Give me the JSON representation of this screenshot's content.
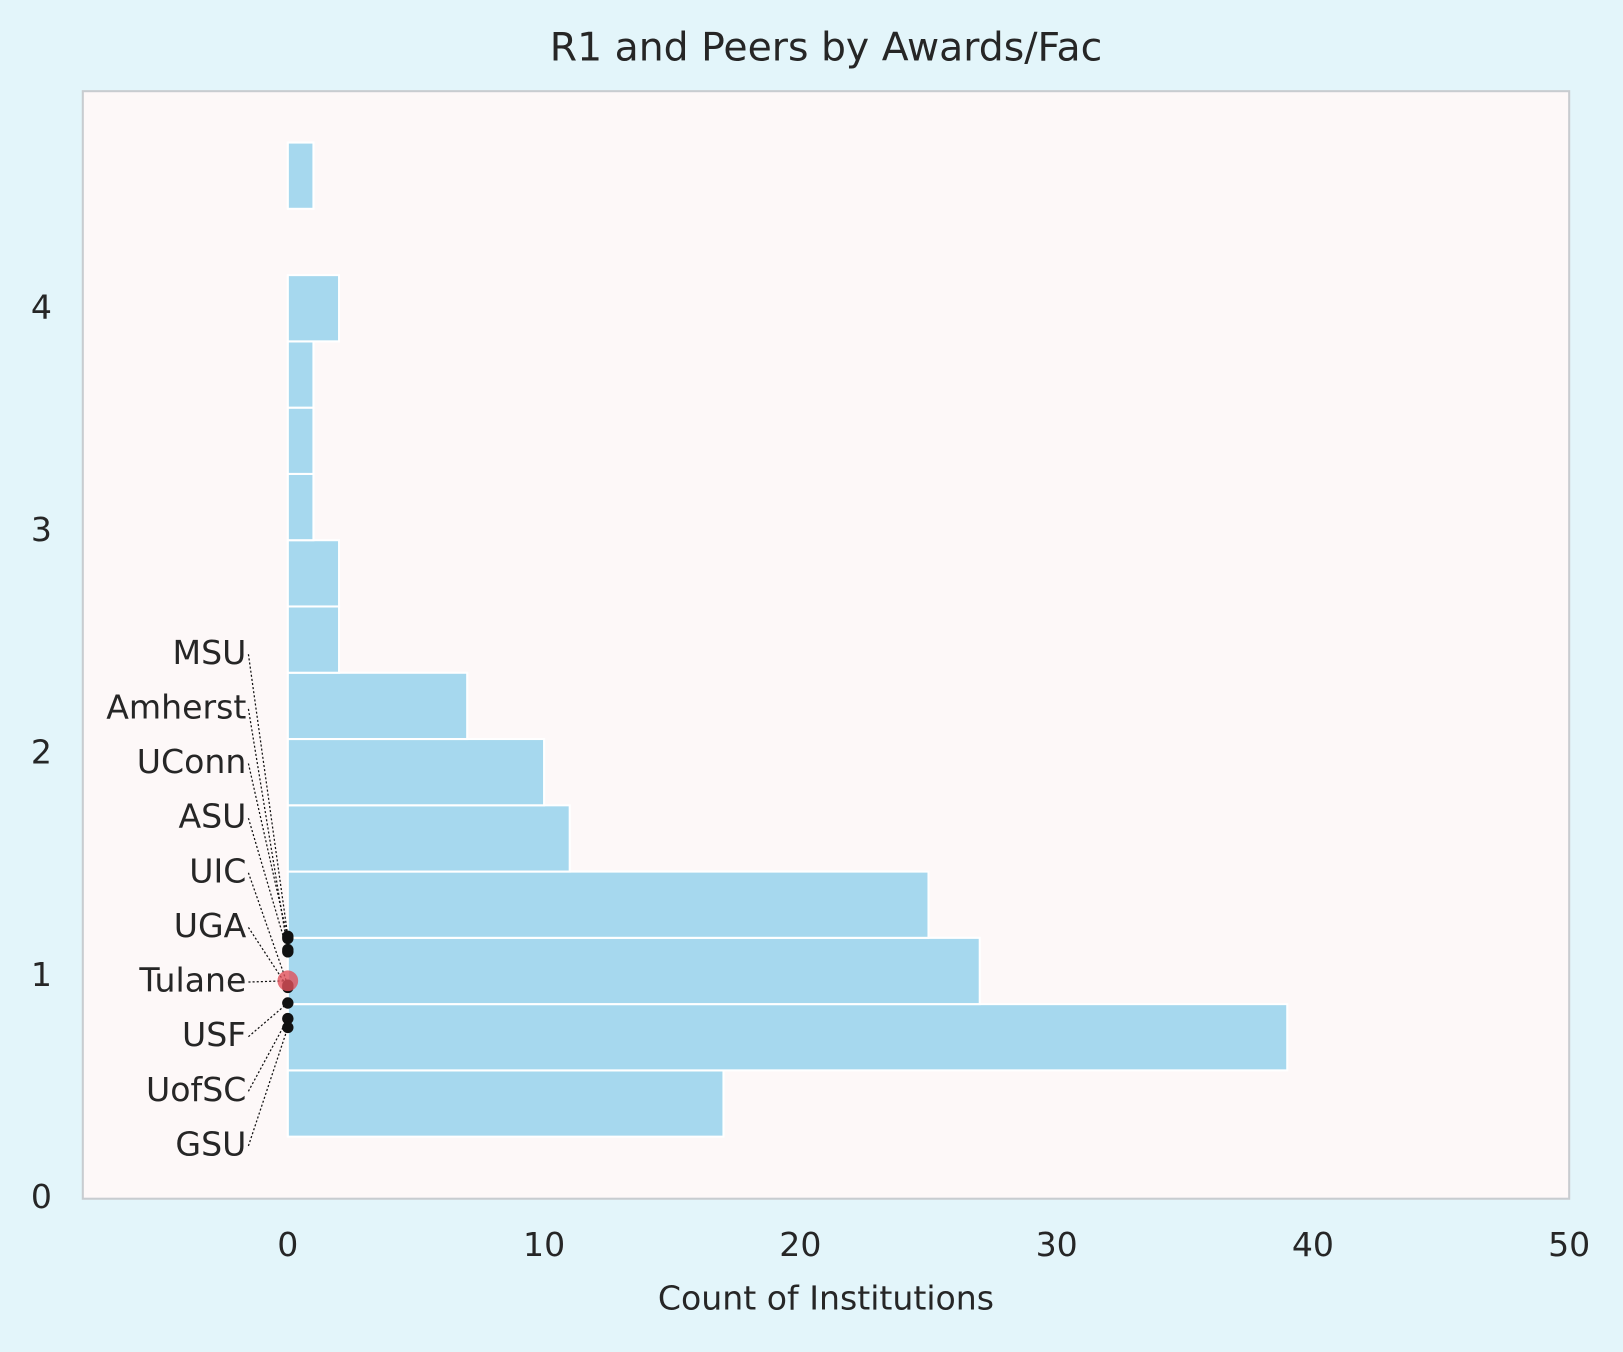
{
  "chart_data": {
    "type": "histogram",
    "orientation": "horizontal",
    "title": "R1 and Peers by Awards/Fac",
    "xlabel": "Count of Institutions",
    "bins": [
      0.279,
      0.577,
      0.875,
      1.173,
      1.471,
      1.769,
      2.067,
      2.365,
      2.663,
      2.961,
      3.259,
      3.557,
      3.855,
      4.153,
      4.451,
      4.749
    ],
    "counts": [
      17,
      39,
      27,
      25,
      11,
      10,
      7,
      2,
      2,
      1,
      1,
      1,
      2,
      0,
      1
    ],
    "color": "#a6d8ee",
    "xlim": [
      -8,
      50
    ],
    "ylim": [
      0,
      4.98
    ],
    "xticks": [
      0,
      10,
      20,
      30,
      40,
      50
    ],
    "yticks": [
      0,
      1,
      2,
      3,
      4
    ],
    "grid": false,
    "points": {
      "labels": [
        "MSU",
        "Amherst",
        "UConn",
        "ASU",
        "UIC",
        "UGA",
        "Tulane",
        "USF",
        "UofSC",
        "GSU"
      ],
      "x": [
        0,
        0,
        0,
        0,
        0,
        0,
        0,
        0,
        0,
        0
      ],
      "y": [
        1.18,
        1.12,
        1.17,
        1.11,
        0.96,
        0.95,
        0.98,
        0.88,
        0.81,
        0.77
      ],
      "colors": [
        "#111111",
        "#111111",
        "#111111",
        "#111111",
        "#111111",
        "#111111",
        "#e0505a",
        "#111111",
        "#111111",
        "#111111"
      ]
    }
  }
}
